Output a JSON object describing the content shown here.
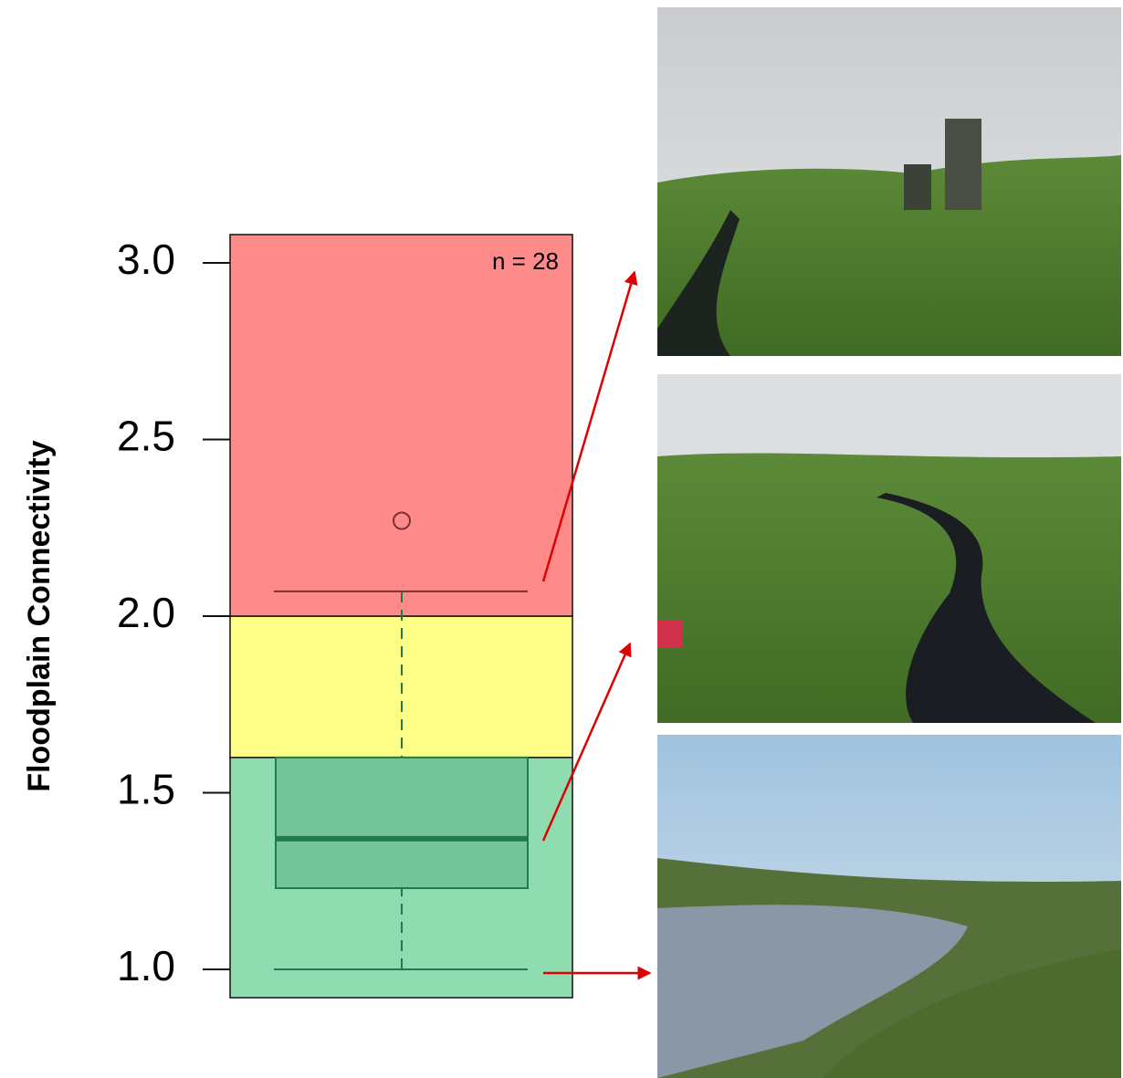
{
  "chart_data": {
    "type": "box",
    "ylabel": "Floodplain Connectivity",
    "annotation": "n = 28",
    "ylim": [
      0.92,
      3.08
    ],
    "yticks": [
      {
        "value": 1,
        "label": "1.0"
      },
      1.5,
      {
        "value": 2,
        "label": "2.0"
      },
      2.5,
      {
        "value": 3,
        "label": "3.0"
      }
    ],
    "band_breaks": [
      1.6,
      2.0
    ],
    "band_colors": [
      "#8fdcb0",
      "#ffff88",
      "#ff8a8a"
    ],
    "box_color": "#74c69a",
    "line_color": "#1f7a4c",
    "boxes": [
      {
        "low": 1.0,
        "q1": 1.23,
        "median": 1.37,
        "q3": 1.6,
        "high": 2.07,
        "outliers": [
          2.27
        ]
      }
    ]
  }
}
